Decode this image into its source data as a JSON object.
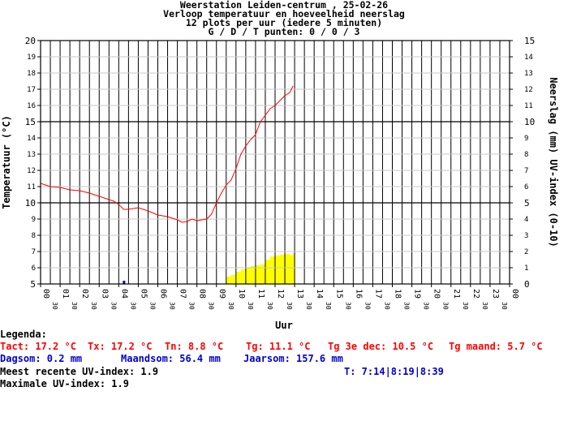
{
  "chart_data": {
    "type": "line",
    "title_lines": [
      "Weerstation Leiden-centrum , 25-02-26",
      "Verloop temperatuur en hoeveelheid neerslag",
      "12 plots per uur (iedere 5 minuten)",
      "G / D / T punten: 0 / 0 / 3"
    ],
    "xlabel": "Uur",
    "ylabel_left": "Temperatuur (°C)",
    "ylabel_right": "Neerslag (mm)  UV-index (0-10)",
    "left_ylim": [
      5,
      20
    ],
    "right_ylim": [
      0,
      15
    ],
    "x_range_hours": [
      0,
      24
    ],
    "hour_labels": [
      "00",
      "01",
      "02",
      "03",
      "04",
      "05",
      "06",
      "07",
      "08",
      "09",
      "10",
      "11",
      "12",
      "13",
      "14",
      "15",
      "16",
      "17",
      "18",
      "19",
      "20",
      "21",
      "22",
      "23",
      "00"
    ],
    "half_label": "30",
    "temperature": {
      "name": "Temperatuur",
      "color": "#ff0000",
      "x_hours": [
        0,
        0.5,
        1.0,
        1.5,
        2.0,
        2.5,
        3.0,
        3.5,
        3.75,
        4.0,
        4.25,
        4.5,
        5.0,
        5.5,
        6.0,
        6.5,
        7.0,
        7.25,
        7.5,
        7.75,
        8.0,
        8.5,
        8.75,
        9.0,
        9.25,
        9.5,
        9.75,
        10.0,
        10.25,
        10.5,
        10.75,
        11.0,
        11.25,
        11.5,
        11.75,
        12.0,
        12.25,
        12.5,
        12.75,
        12.92
      ],
      "values": [
        11.2,
        11.0,
        10.95,
        10.8,
        10.75,
        10.6,
        10.4,
        10.2,
        10.1,
        9.9,
        9.6,
        9.6,
        9.7,
        9.5,
        9.25,
        9.15,
        8.95,
        8.8,
        8.85,
        9.0,
        8.9,
        9.0,
        9.3,
        10.0,
        10.6,
        11.1,
        11.4,
        12.1,
        13.0,
        13.5,
        13.9,
        14.2,
        15.0,
        15.4,
        15.8,
        16.0,
        16.3,
        16.6,
        16.8,
        17.2
      ]
    },
    "precipitation": {
      "name": "Neerslag",
      "color": "#0000cc",
      "x_hours": [
        4.25
      ],
      "values": [
        0.2
      ]
    },
    "uv_index": {
      "name": "UV-index",
      "color": "#ffff00",
      "x_hours": [
        9.5,
        9.75,
        10.0,
        10.25,
        10.5,
        10.75,
        11.0,
        11.25,
        11.5,
        11.75,
        12.0,
        12.25,
        12.5,
        12.75,
        12.92
      ],
      "values": [
        0.45,
        0.55,
        0.75,
        0.9,
        1.0,
        1.1,
        1.15,
        1.2,
        1.5,
        1.7,
        1.75,
        1.8,
        1.85,
        1.75,
        1.9
      ]
    },
    "grid": true,
    "legend": "below"
  },
  "legend": {
    "title": "Legenda:",
    "row1": [
      "Tact: 17.2 °C",
      "Tx: 17.2 °C",
      "Tn: 8.8 °C",
      "Tg: 11.1 °C",
      "Tg 3e dec: 10.5 °C",
      "Tg maand: 5.7 °C"
    ],
    "row2": [
      "Dagsom: 0.2 mm",
      "Maandsom: 56.4 mm",
      "Jaarsom: 157.6 mm"
    ],
    "uv_recent": "Meest recente UV-index: 1.9",
    "times": "T: 7:14|8:19|8:39",
    "uv_max": "Maximale UV-index: 1.9"
  },
  "colors": {
    "temperature": "#ff0000",
    "precipitation": "#0000cc",
    "uv": "#ffff00",
    "text_red": "#ff0000",
    "text_blue": "#0000cc"
  }
}
